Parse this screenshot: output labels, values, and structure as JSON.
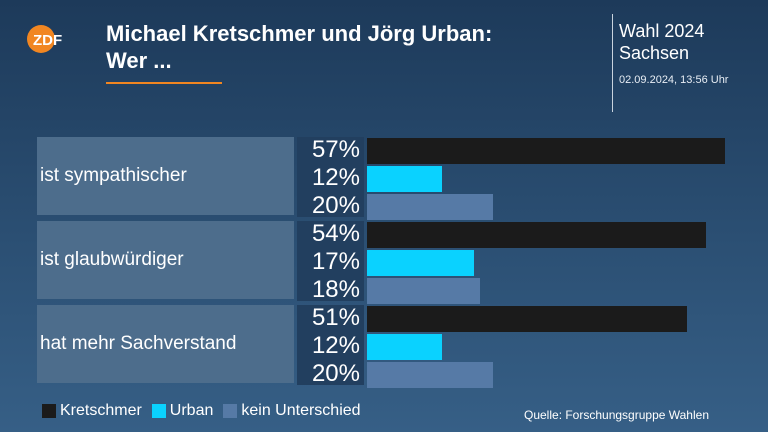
{
  "logo_text": "ZDF",
  "header": {
    "title": "Michael Kretschmer und Jörg Urban:\nWer ...",
    "right_title": "Wahl 2024\nSachsen",
    "timestamp": "02.09.2024, 13:56 Uhr"
  },
  "chart_data": {
    "type": "bar",
    "orientation": "horizontal",
    "title": "Michael Kretschmer und Jörg Urban: Wer ...",
    "categories": [
      "ist sympathischer",
      "ist glaubwürdiger",
      "hat mehr Sachverstand"
    ],
    "series": [
      {
        "name": "Kretschmer",
        "color": "#1b1b1b",
        "values": [
          57,
          54,
          51
        ]
      },
      {
        "name": "Urban",
        "color": "#0ad2ff",
        "values": [
          12,
          17,
          12
        ]
      },
      {
        "name": "kein Unterschied",
        "color": "#567aa6",
        "values": [
          20,
          18,
          20
        ]
      }
    ],
    "unit": "%",
    "xlim": [
      0,
      57
    ],
    "grid": false,
    "legend_position": "bottom-left"
  },
  "source": "Quelle: Forschungsgruppe Wahlen"
}
